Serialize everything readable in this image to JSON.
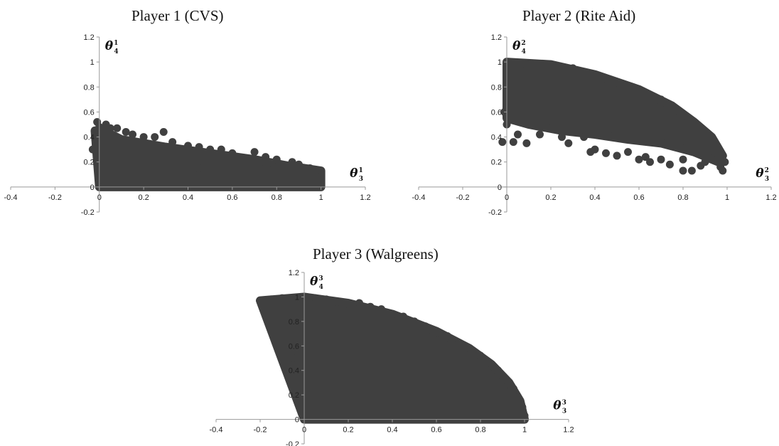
{
  "chart_data": [
    {
      "type": "scatter",
      "title": "Player 1 (CVS)",
      "xlabel": {
        "base": "θ",
        "sup": "1",
        "sub": "3"
      },
      "ylabel": {
        "base": "θ",
        "sup": "1",
        "sub": "4"
      },
      "xlim": [
        -0.4,
        1.2
      ],
      "ylim": [
        -0.2,
        1.2
      ],
      "x_ticks": [
        "-0.4",
        "-0.2",
        "0",
        "0.2",
        "0.4",
        "0.6",
        "0.8",
        "1",
        "1.2"
      ],
      "y_ticks": [
        "-0.2",
        "0",
        "0.2",
        "0.4",
        "0.6",
        "0.8",
        "1",
        "1.2"
      ],
      "marker_color": "#404040",
      "grid": false,
      "region_outline": [
        [
          -0.02,
          0.45
        ],
        [
          0.02,
          0.45
        ],
        [
          0.1,
          0.38
        ],
        [
          0.3,
          0.32
        ],
        [
          0.5,
          0.27
        ],
        [
          0.7,
          0.22
        ],
        [
          0.85,
          0.17
        ],
        [
          1.0,
          0.13
        ],
        [
          1.0,
          0.0
        ],
        [
          0.0,
          0.0
        ]
      ],
      "points": [
        [
          -0.01,
          0.52
        ],
        [
          0.0,
          0.48
        ],
        [
          0.03,
          0.5
        ],
        [
          0.05,
          0.47
        ],
        [
          0.08,
          0.47
        ],
        [
          0.12,
          0.44
        ],
        [
          0.15,
          0.42
        ],
        [
          0.2,
          0.4
        ],
        [
          0.25,
          0.4
        ],
        [
          0.29,
          0.44
        ],
        [
          0.33,
          0.36
        ],
        [
          0.4,
          0.33
        ],
        [
          0.45,
          0.32
        ],
        [
          0.5,
          0.3
        ],
        [
          0.55,
          0.3
        ],
        [
          0.6,
          0.27
        ],
        [
          0.7,
          0.28
        ],
        [
          0.75,
          0.24
        ],
        [
          0.8,
          0.22
        ],
        [
          0.87,
          0.2
        ],
        [
          0.9,
          0.18
        ],
        [
          0.95,
          0.15
        ],
        [
          0.99,
          0.12
        ],
        [
          1.0,
          0.08
        ],
        [
          1.0,
          0.03
        ],
        [
          -0.02,
          0.4
        ],
        [
          -0.03,
          0.3
        ],
        [
          0.02,
          0.05
        ],
        [
          0.3,
          0.05
        ],
        [
          0.6,
          0.05
        ],
        [
          0.9,
          0.05
        ],
        [
          0.45,
          0.15
        ],
        [
          0.75,
          0.12
        ]
      ]
    },
    {
      "type": "scatter",
      "title": "Player 2 (Rite Aid)",
      "xlabel": {
        "base": "θ",
        "sup": "2",
        "sub": "3"
      },
      "ylabel": {
        "base": "θ",
        "sup": "2",
        "sub": "4"
      },
      "xlim": [
        -0.4,
        1.2
      ],
      "ylim": [
        -0.2,
        1.2
      ],
      "x_ticks": [
        "-0.4",
        "-0.2",
        "0",
        "0.2",
        "0.4",
        "0.6",
        "0.8",
        "1",
        "1.2"
      ],
      "y_ticks": [
        "-0.2",
        "0",
        "0.2",
        "0.4",
        "0.6",
        "0.8",
        "1",
        "1.2"
      ],
      "marker_color": "#404040",
      "grid": false,
      "region_outline": [
        [
          0.0,
          1.0
        ],
        [
          0.2,
          0.98
        ],
        [
          0.4,
          0.9
        ],
        [
          0.6,
          0.78
        ],
        [
          0.75,
          0.65
        ],
        [
          0.85,
          0.52
        ],
        [
          0.93,
          0.4
        ],
        [
          0.98,
          0.25
        ],
        [
          0.96,
          0.2
        ],
        [
          0.85,
          0.28
        ],
        [
          0.7,
          0.35
        ],
        [
          0.55,
          0.38
        ],
        [
          0.4,
          0.42
        ],
        [
          0.25,
          0.45
        ],
        [
          0.1,
          0.5
        ],
        [
          0.0,
          0.55
        ]
      ],
      "points": [
        [
          -0.01,
          0.6
        ],
        [
          0.0,
          0.5
        ],
        [
          -0.02,
          0.36
        ],
        [
          0.03,
          0.36
        ],
        [
          0.09,
          0.35
        ],
        [
          0.05,
          0.42
        ],
        [
          0.15,
          0.42
        ],
        [
          0.25,
          0.4
        ],
        [
          0.28,
          0.35
        ],
        [
          0.35,
          0.4
        ],
        [
          0.38,
          0.28
        ],
        [
          0.4,
          0.3
        ],
        [
          0.45,
          0.27
        ],
        [
          0.5,
          0.25
        ],
        [
          0.55,
          0.28
        ],
        [
          0.6,
          0.22
        ],
        [
          0.63,
          0.24
        ],
        [
          0.65,
          0.2
        ],
        [
          0.7,
          0.22
        ],
        [
          0.74,
          0.18
        ],
        [
          0.8,
          0.22
        ],
        [
          0.8,
          0.13
        ],
        [
          0.84,
          0.13
        ],
        [
          0.88,
          0.17
        ],
        [
          0.9,
          0.2
        ],
        [
          0.93,
          0.22
        ],
        [
          0.97,
          0.16
        ],
        [
          0.98,
          0.13
        ],
        [
          0.99,
          0.2
        ],
        [
          0.0,
          0.99
        ],
        [
          0.3,
          0.95
        ],
        [
          0.7,
          0.7
        ]
      ]
    },
    {
      "type": "scatter",
      "title": "Player 3 (Walgreens)",
      "xlabel": {
        "base": "θ",
        "sup": "3",
        "sub": "3"
      },
      "ylabel": {
        "base": "θ",
        "sup": "3",
        "sub": "4"
      },
      "xlim": [
        -0.4,
        1.2
      ],
      "ylim": [
        -0.2,
        1.2
      ],
      "x_ticks": [
        "-0.4",
        "-0.2",
        "0",
        "0.2",
        "0.4",
        "0.6",
        "0.8",
        "1",
        "1.2"
      ],
      "y_ticks": [
        "-0.2",
        "0",
        "0.2",
        "0.4",
        "0.6",
        "0.8",
        "1",
        "1.2"
      ],
      "marker_color": "#404040",
      "grid": false,
      "region_outline": [
        [
          -0.2,
          0.97
        ],
        [
          0.0,
          1.0
        ],
        [
          0.2,
          0.95
        ],
        [
          0.4,
          0.86
        ],
        [
          0.6,
          0.72
        ],
        [
          0.75,
          0.58
        ],
        [
          0.85,
          0.45
        ],
        [
          0.93,
          0.3
        ],
        [
          0.98,
          0.15
        ],
        [
          1.0,
          0.0
        ],
        [
          0.0,
          0.0
        ]
      ],
      "points": [
        [
          -0.2,
          0.97
        ],
        [
          -0.15,
          0.98
        ],
        [
          -0.1,
          0.99
        ],
        [
          -0.05,
          0.97
        ],
        [
          0.0,
          1.0
        ],
        [
          0.05,
          0.99
        ],
        [
          0.1,
          0.98
        ],
        [
          0.15,
          0.96
        ],
        [
          0.2,
          0.94
        ],
        [
          0.25,
          0.95
        ],
        [
          0.3,
          0.92
        ],
        [
          0.35,
          0.9
        ],
        [
          0.4,
          0.86
        ],
        [
          0.45,
          0.84
        ],
        [
          0.5,
          0.8
        ],
        [
          0.55,
          0.76
        ],
        [
          0.6,
          0.72
        ],
        [
          0.65,
          0.68
        ],
        [
          0.7,
          0.62
        ],
        [
          0.75,
          0.58
        ],
        [
          0.8,
          0.52
        ],
        [
          0.85,
          0.45
        ],
        [
          0.88,
          0.4
        ],
        [
          0.92,
          0.32
        ],
        [
          0.95,
          0.25
        ],
        [
          0.97,
          0.18
        ],
        [
          0.99,
          0.1
        ],
        [
          1.0,
          0.03
        ],
        [
          0.0,
          0.0
        ],
        [
          -0.1,
          0.75
        ],
        [
          -0.05,
          0.5
        ],
        [
          0.0,
          0.03
        ],
        [
          0.5,
          0.02
        ],
        [
          0.9,
          0.02
        ]
      ]
    }
  ]
}
